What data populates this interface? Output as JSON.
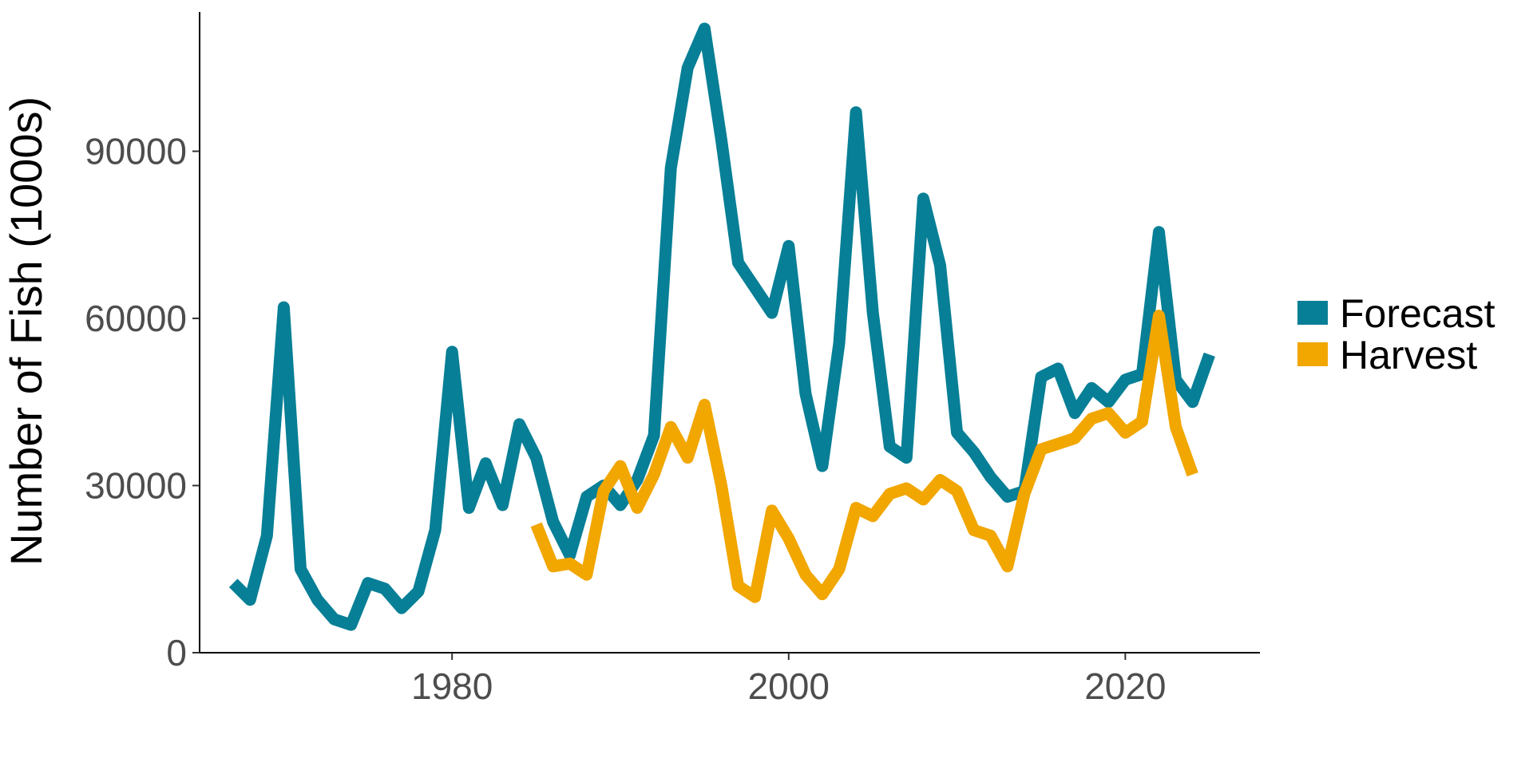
{
  "chart_data": {
    "type": "line",
    "title": "",
    "xlabel": "",
    "ylabel": "Number of Fish (1000s)",
    "xlim": [
      1965,
      2028
    ],
    "ylim": [
      0,
      115000
    ],
    "x_ticks": [
      1980,
      2000,
      2020
    ],
    "y_ticks": [
      0,
      30000,
      60000,
      90000
    ],
    "grid": false,
    "legend_position": "right",
    "series": [
      {
        "name": "Forecast",
        "color": "#077f96",
        "points": [
          [
            1967,
            12500
          ],
          [
            1968,
            9500
          ],
          [
            1969,
            21000
          ],
          [
            1970,
            62000
          ],
          [
            1971,
            15000
          ],
          [
            1972,
            9500
          ],
          [
            1973,
            6000
          ],
          [
            1974,
            5000
          ],
          [
            1975,
            12500
          ],
          [
            1976,
            11500
          ],
          [
            1977,
            8000
          ],
          [
            1978,
            11000
          ],
          [
            1979,
            22000
          ],
          [
            1980,
            54000
          ],
          [
            1981,
            26000
          ],
          [
            1982,
            34000
          ],
          [
            1983,
            26500
          ],
          [
            1984,
            41000
          ],
          [
            1985,
            35000
          ],
          [
            1986,
            23500
          ],
          [
            1987,
            17500
          ],
          [
            1988,
            28000
          ],
          [
            1989,
            30000
          ],
          [
            1990,
            26500
          ],
          [
            1991,
            31000
          ],
          [
            1992,
            39000
          ],
          [
            1993,
            87000
          ],
          [
            1994,
            105000
          ],
          [
            1995,
            112000
          ],
          [
            1996,
            92000
          ],
          [
            1997,
            70000
          ],
          [
            1998,
            65500
          ],
          [
            1999,
            61000
          ],
          [
            2000,
            73000
          ],
          [
            2001,
            46500
          ],
          [
            2002,
            33500
          ],
          [
            2003,
            55500
          ],
          [
            2004,
            97000
          ],
          [
            2005,
            61000
          ],
          [
            2006,
            37000
          ],
          [
            2007,
            35000
          ],
          [
            2008,
            81500
          ],
          [
            2009,
            69500
          ],
          [
            2010,
            39500
          ],
          [
            2011,
            36000
          ],
          [
            2012,
            31500
          ],
          [
            2013,
            28000
          ],
          [
            2014,
            29000
          ],
          [
            2015,
            49500
          ],
          [
            2016,
            51000
          ],
          [
            2017,
            43000
          ],
          [
            2018,
            47500
          ],
          [
            2019,
            45000
          ],
          [
            2020,
            49000
          ],
          [
            2021,
            50000
          ],
          [
            2022,
            75500
          ],
          [
            2023,
            49000
          ],
          [
            2024,
            45000
          ],
          [
            2025,
            53500
          ]
        ]
      },
      {
        "name": "Harvest",
        "color": "#f1a600",
        "points": [
          [
            1985,
            23000
          ],
          [
            1986,
            15500
          ],
          [
            1987,
            16000
          ],
          [
            1988,
            14000
          ],
          [
            1989,
            29000
          ],
          [
            1990,
            33500
          ],
          [
            1991,
            26000
          ],
          [
            1992,
            32000
          ],
          [
            1993,
            40500
          ],
          [
            1994,
            35000
          ],
          [
            1995,
            44500
          ],
          [
            1996,
            30000
          ],
          [
            1997,
            12000
          ],
          [
            1998,
            10000
          ],
          [
            1999,
            25500
          ],
          [
            2000,
            20500
          ],
          [
            2001,
            14000
          ],
          [
            2002,
            10500
          ],
          [
            2003,
            15000
          ],
          [
            2004,
            26000
          ],
          [
            2005,
            24500
          ],
          [
            2006,
            28500
          ],
          [
            2007,
            29500
          ],
          [
            2008,
            27500
          ],
          [
            2009,
            31000
          ],
          [
            2010,
            29000
          ],
          [
            2011,
            22000
          ],
          [
            2012,
            21000
          ],
          [
            2013,
            15500
          ],
          [
            2014,
            28500
          ],
          [
            2015,
            36500
          ],
          [
            2016,
            37500
          ],
          [
            2017,
            38500
          ],
          [
            2018,
            42000
          ],
          [
            2019,
            43000
          ],
          [
            2020,
            39500
          ],
          [
            2021,
            41500
          ],
          [
            2022,
            60500
          ],
          [
            2023,
            40500
          ],
          [
            2024,
            32000
          ]
        ]
      }
    ]
  }
}
